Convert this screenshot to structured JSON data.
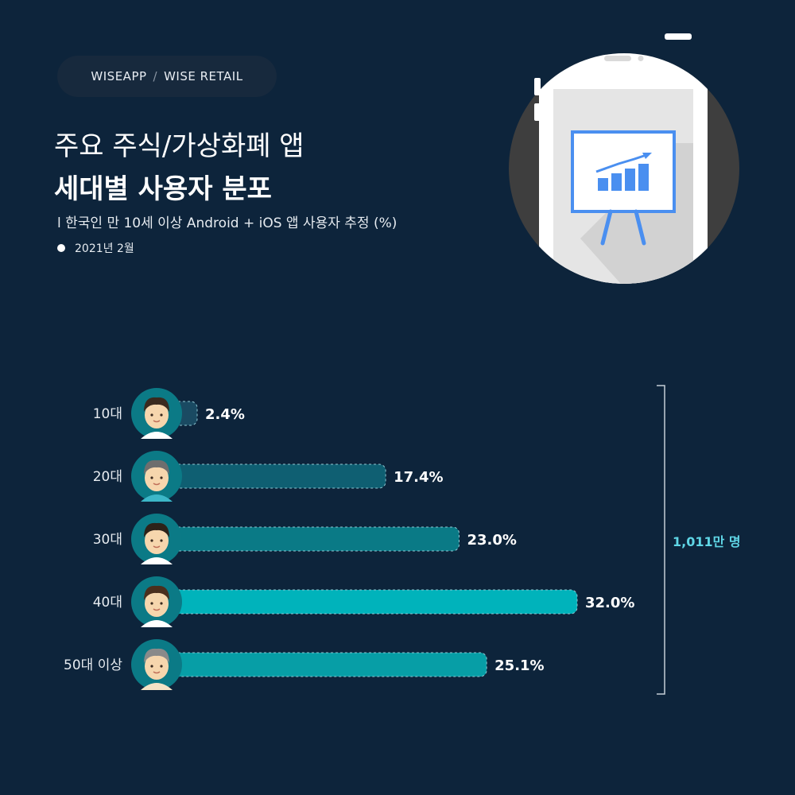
{
  "brand": {
    "left": "WISEAPP",
    "sep": "/",
    "right": "WISE RETAIL"
  },
  "title": {
    "line1": "주요 주식/가상화폐 앱",
    "line2": "세대별 사용자 분포"
  },
  "subtitle": "l 한국인 만 10세 이상 Android + iOS 앱 사용자 추정 (%)",
  "date": "2021년 2월",
  "total_label": "1,011만 명",
  "colors": {
    "background": "#0d243b",
    "bar_gradient": [
      "#1a4a62",
      "#0f5f72",
      "#0a7a86",
      "#00b3bb",
      "#079ea6"
    ],
    "accent": "#5fd6e6"
  },
  "chart_data": {
    "type": "bar",
    "orientation": "horizontal",
    "categories": [
      "10대",
      "20대",
      "30대",
      "40대",
      "50대 이상"
    ],
    "values": [
      2.4,
      17.4,
      23.0,
      32.0,
      25.1
    ],
    "value_labels": [
      "2.4%",
      "17.4%",
      "23.0%",
      "32.0%",
      "25.1%"
    ],
    "title": "세대별 사용자 분포",
    "xlim": [
      0,
      32
    ],
    "grid": false,
    "legend": "none"
  }
}
